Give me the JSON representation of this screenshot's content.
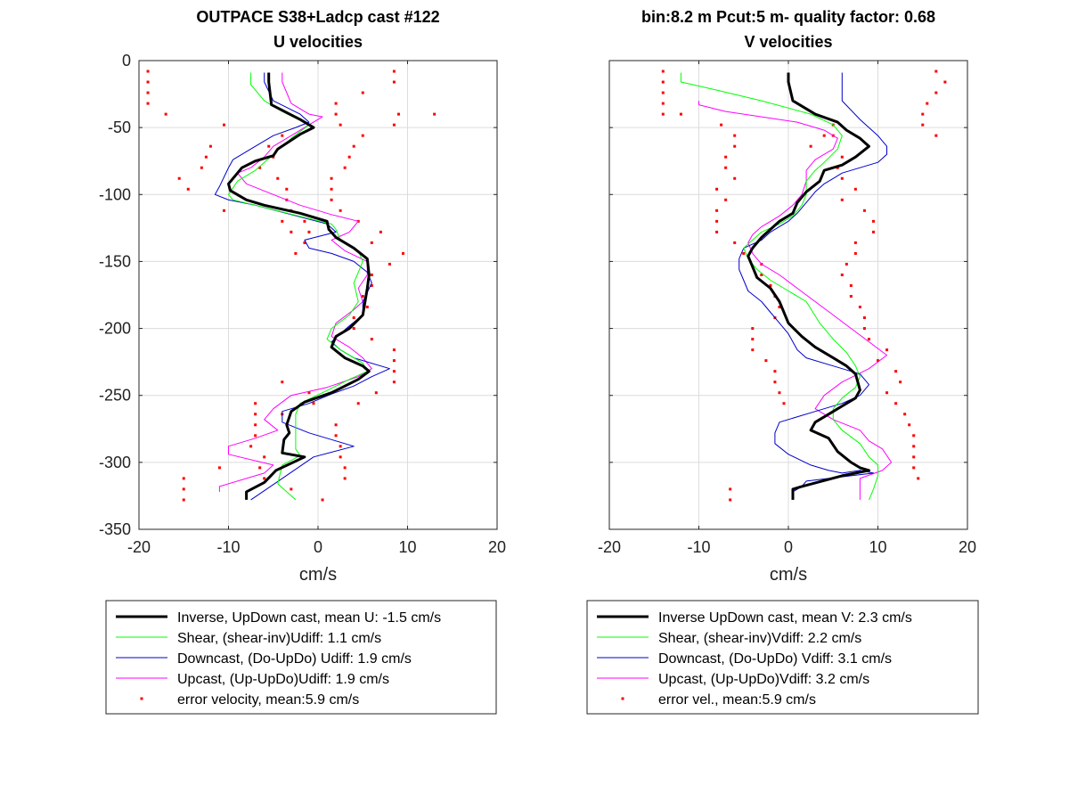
{
  "colors": {
    "inverse": "#000000",
    "shear": "#00ff00",
    "downcast": "#0000cc",
    "upcast": "#ff00ff",
    "error": "#ff0000",
    "grid": "#dcdcdc"
  },
  "chart_data": [
    {
      "type": "line",
      "title": "OUTPACE S38+Ladcp cast #122",
      "subtitle": "U velocities",
      "xlabel": "cm/s",
      "ylabel": "",
      "xlim": [
        -20,
        20
      ],
      "ylim": [
        -350,
        0
      ],
      "xticks": [
        "-20",
        "-10",
        "0",
        "10",
        "20"
      ],
      "yticks": [
        "0",
        "-50",
        "-100",
        "-150",
        "-200",
        "-250",
        "-300",
        "-350"
      ],
      "grid": true,
      "legend_position": "below",
      "series": [
        {
          "key": "inverse",
          "name": "Inverse, UpDown cast, mean U:  -1.5 cm/s",
          "x": [
            -5.5,
            -5.5,
            -5.2,
            -2,
            -0.5,
            -2,
            -4.5,
            -5,
            -7,
            -8.5,
            -10,
            -9.8,
            -8,
            -6,
            -2,
            1,
            1.2,
            2,
            4,
            5.5,
            5.7,
            5.5,
            5,
            3.5,
            2,
            1.5,
            3,
            5,
            5.7,
            4.5,
            1.5,
            -1.5,
            -3,
            -3.5,
            -3.2,
            -3.8,
            -4,
            -1.5,
            -4.7,
            -6,
            -8,
            -8
          ],
          "y": [
            -9,
            -16,
            -33,
            -44,
            -50,
            -55,
            -66,
            -71,
            -75,
            -80,
            -92,
            -97,
            -104,
            -108,
            -114,
            -120,
            -126,
            -132,
            -140,
            -148,
            -160,
            -170,
            -190,
            -200,
            -206,
            -214,
            -222,
            -228,
            -232,
            -238,
            -248,
            -255,
            -262,
            -272,
            -278,
            -283,
            -293,
            -296,
            -306,
            -315,
            -322,
            -328
          ],
          "width": 3
        },
        {
          "key": "shear",
          "name": "Shear, (shear-inv)Udiff:  1.1 cm/s",
          "x": [
            -7.5,
            -7.5,
            -6,
            -4,
            -1,
            -3,
            -5,
            -7,
            -9,
            -10,
            -9.5,
            -7,
            -4,
            -1,
            1.5,
            2,
            2.5,
            4.5,
            5,
            4,
            4.5,
            3.5,
            1.5,
            1,
            2.5,
            5,
            5.5,
            3.5,
            0.5,
            -2,
            -2.5,
            -2.5,
            -2.5,
            -2,
            -4,
            -4.5,
            -2.5
          ],
          "y": [
            -9,
            -18,
            -30,
            -38,
            -48,
            -58,
            -70,
            -82,
            -90,
            -100,
            -104,
            -108,
            -113,
            -118,
            -122,
            -126,
            -134,
            -142,
            -150,
            -166,
            -180,
            -190,
            -200,
            -208,
            -216,
            -226,
            -232,
            -238,
            -248,
            -256,
            -264,
            -280,
            -290,
            -295,
            -302,
            -316,
            -328
          ],
          "width": 1
        },
        {
          "key": "downcast",
          "name": "Downcast, (Do-UpDo) Udiff:  1.9 cm/s",
          "x": [
            -6,
            -6,
            -5,
            -2,
            -1,
            -2.5,
            -5,
            -7.5,
            -9.5,
            -10,
            -11,
            -11.5,
            -10,
            -7,
            -3,
            1,
            2,
            -1.5,
            -1,
            1.5,
            4,
            5.5,
            6,
            5,
            5,
            3.5,
            1.5,
            2.5,
            4,
            8,
            6,
            4,
            1.5,
            -1,
            -4,
            -4,
            -1,
            2,
            4,
            -0.5,
            -4,
            -7.5
          ],
          "y": [
            -9,
            -16,
            -30,
            -40,
            -46,
            -50,
            -56,
            -66,
            -74,
            -80,
            -94,
            -100,
            -104,
            -108,
            -115,
            -122,
            -128,
            -134,
            -140,
            -144,
            -150,
            -158,
            -166,
            -180,
            -190,
            -198,
            -210,
            -216,
            -222,
            -230,
            -236,
            -243,
            -249,
            -256,
            -262,
            -270,
            -278,
            -284,
            -288,
            -296,
            -312,
            -328
          ],
          "width": 1
        },
        {
          "key": "upcast",
          "name": "Upcast, (Up-UpDo)Udiff:  1.9 cm/s",
          "x": [
            -4,
            -4,
            -3,
            -1,
            0.5,
            -1,
            -3,
            -5,
            -6,
            -7.5,
            -9,
            -8,
            -5,
            -2,
            1.5,
            4.5,
            3.5,
            1.5,
            3,
            5.5,
            5.5,
            4.5,
            5,
            4,
            2,
            1.5,
            3.5,
            5,
            6,
            4.5,
            1,
            -3,
            -5,
            -6,
            -4.5,
            -7,
            -10,
            -10,
            -5,
            -6,
            -11,
            -11
          ],
          "y": [
            -9,
            -16,
            -32,
            -40,
            -42,
            -48,
            -56,
            -64,
            -72,
            -80,
            -84,
            -92,
            -100,
            -108,
            -115,
            -120,
            -128,
            -134,
            -142,
            -150,
            -160,
            -170,
            -180,
            -186,
            -196,
            -206,
            -214,
            -222,
            -230,
            -236,
            -244,
            -250,
            -260,
            -268,
            -276,
            -282,
            -288,
            -294,
            -302,
            -308,
            -318,
            -322
          ],
          "width": 1
        }
      ],
      "error_points": {
        "name": "error velocity, mean:5.9 cm/s",
        "x": [
          -19,
          -19,
          -19,
          -19,
          -17,
          -10.5,
          -12,
          -12.5,
          -13,
          -15.5,
          -14.5,
          -10.5,
          -4,
          -5.5,
          -5,
          -6.5,
          -4.5,
          -3.5,
          -3.5,
          -3,
          -1.5,
          -1,
          -1.5,
          -2.5,
          -3,
          -4,
          -15,
          -15,
          -15,
          -11,
          -7,
          -7,
          -7,
          -7,
          -7.5,
          -6,
          -6.5,
          -6,
          -4,
          -1,
          -0.5,
          -4,
          -3,
          0.5,
          3,
          3,
          2.5,
          2.5,
          2,
          2,
          4.5,
          6.5,
          8.5,
          8.5,
          8.5,
          8.5,
          6,
          4,
          4,
          5.5,
          5,
          6,
          6,
          8,
          9.5,
          6,
          7,
          4.5,
          2.5,
          1.5,
          1.5,
          1.5,
          3,
          3.5,
          4,
          5,
          2.5,
          2,
          2,
          5,
          8.5,
          8.5,
          8.5,
          9,
          13
        ],
        "y": [
          -8,
          -16,
          -24,
          -32,
          -40,
          -48,
          -64,
          -72,
          -80,
          -88,
          -96,
          -112,
          -56,
          -64,
          -72,
          -80,
          -88,
          -96,
          -104,
          -112,
          -120,
          -128,
          -136,
          -144,
          -128,
          -120,
          -312,
          -320,
          -328,
          -304,
          -256,
          -264,
          -272,
          -280,
          -288,
          -296,
          -304,
          -312,
          -240,
          -248,
          -256,
          -264,
          -320,
          -328,
          -312,
          -304,
          -296,
          -288,
          -280,
          -272,
          -256,
          -248,
          -240,
          -232,
          -224,
          -216,
          -208,
          -200,
          -192,
          -184,
          -176,
          -168,
          -160,
          -152,
          -144,
          -136,
          -128,
          -120,
          -112,
          -104,
          -96,
          -88,
          -80,
          -72,
          -64,
          -56,
          -48,
          -40,
          -32,
          -24,
          -16,
          -8,
          -48,
          -40,
          -40
        ],
        "color": "#ff0000"
      }
    },
    {
      "type": "line",
      "title": "bin:8.2 m  Pcut:5 m- quality factor:  0.68",
      "subtitle": "V velocities",
      "xlabel": "cm/s",
      "ylabel": "",
      "xlim": [
        -20,
        20
      ],
      "ylim": [
        -350,
        0
      ],
      "xticks": [
        "-20",
        "-10",
        "0",
        "10",
        "20"
      ],
      "yticks": [],
      "grid": true,
      "legend_position": "below",
      "series": [
        {
          "key": "inverse",
          "name": "Inverse UpDown cast, mean V:  2.3 cm/s",
          "x": [
            0,
            0,
            0.5,
            3,
            5.5,
            6.5,
            8,
            9,
            7.5,
            6,
            4,
            3.5,
            2,
            1,
            0.5,
            -1,
            -2,
            -3,
            -4,
            -4.5,
            -4,
            -3.5,
            -2,
            -1,
            0,
            1.5,
            3,
            5,
            6.5,
            7.5,
            8,
            7.5,
            6,
            4.5,
            3,
            2.5,
            4.5,
            5.5,
            7,
            8,
            9,
            6,
            1.5,
            0.5,
            0.5
          ],
          "y": [
            -9,
            -16,
            -30,
            -40,
            -46,
            -52,
            -58,
            -64,
            -72,
            -78,
            -82,
            -90,
            -98,
            -106,
            -114,
            -120,
            -126,
            -132,
            -140,
            -146,
            -154,
            -162,
            -170,
            -180,
            -196,
            -206,
            -214,
            -222,
            -228,
            -234,
            -246,
            -252,
            -258,
            -264,
            -270,
            -276,
            -282,
            -292,
            -300,
            -304,
            -306,
            -310,
            -318,
            -320,
            -328
          ],
          "width": 3
        },
        {
          "key": "shear",
          "name": "Shear, (shear-inv)Vdiff:  2.2 cm/s",
          "x": [
            -12,
            -12,
            -8,
            -3,
            2.5,
            5,
            6,
            5.5,
            4,
            3,
            2,
            2,
            1.5,
            0.5,
            -1,
            -3,
            -4,
            -5,
            -4.5,
            -3.5,
            -2,
            0,
            2,
            3.5,
            5,
            6.5,
            7.5,
            8,
            7.5,
            6,
            5,
            5,
            6,
            8,
            9,
            10,
            10,
            9.5,
            9
          ],
          "y": [
            -9,
            -16,
            -22,
            -30,
            -40,
            -48,
            -56,
            -66,
            -76,
            -82,
            -90,
            -100,
            -108,
            -116,
            -122,
            -128,
            -134,
            -140,
            -148,
            -156,
            -164,
            -172,
            -180,
            -196,
            -208,
            -218,
            -228,
            -236,
            -244,
            -252,
            -260,
            -268,
            -276,
            -286,
            -296,
            -302,
            -310,
            -320,
            -328
          ],
          "width": 1
        },
        {
          "key": "downcast",
          "name": "Downcast, (Do-UpDo) Vdiff:  3.1 cm/s",
          "x": [
            6,
            6,
            6,
            8,
            10,
            11,
            11,
            10,
            8,
            6,
            5,
            4,
            3,
            2,
            1,
            0,
            -2,
            -3,
            -5,
            -5.5,
            -5.5,
            -5,
            -4.5,
            -3,
            -2,
            -1,
            0,
            0.5,
            1,
            2,
            5,
            8,
            9,
            8,
            6,
            3,
            -1,
            -1.5,
            -1.5,
            0,
            2.5,
            4.5,
            6,
            8,
            9.5,
            2,
            1.5,
            0.5,
            0.5
          ],
          "y": [
            -9,
            -16,
            -30,
            -44,
            -56,
            -64,
            -70,
            -76,
            -80,
            -84,
            -88,
            -92,
            -98,
            -106,
            -114,
            -120,
            -128,
            -134,
            -140,
            -148,
            -156,
            -164,
            -172,
            -180,
            -188,
            -196,
            -204,
            -210,
            -216,
            -222,
            -228,
            -234,
            -242,
            -250,
            -256,
            -262,
            -270,
            -278,
            -286,
            -294,
            -302,
            -306,
            -308,
            -306,
            -308,
            -314,
            -318,
            -322,
            -328
          ],
          "width": 1
        },
        {
          "key": "upcast",
          "name": "Upcast, (Up-UpDo)Vdiff:  3.2 cm/s",
          "x": [
            -10,
            -10,
            -7,
            -3,
            1,
            4,
            5.5,
            5,
            3,
            2,
            2,
            1.5,
            0.5,
            -1,
            -3,
            -4,
            -4.5,
            -4,
            -3,
            -1,
            1,
            3,
            5,
            7,
            9,
            11,
            9,
            6,
            4,
            3,
            5,
            8,
            9,
            10.5,
            11.5,
            10.5,
            8,
            8,
            8
          ],
          "y": [
            -30,
            -33,
            -38,
            -42,
            -46,
            -52,
            -58,
            -66,
            -74,
            -82,
            -90,
            -100,
            -108,
            -116,
            -124,
            -130,
            -136,
            -144,
            -152,
            -160,
            -170,
            -180,
            -190,
            -200,
            -210,
            -220,
            -230,
            -240,
            -250,
            -260,
            -268,
            -276,
            -284,
            -290,
            -300,
            -306,
            -312,
            -320,
            -328
          ],
          "width": 1
        }
      ],
      "error_points": {
        "name": "error vel., mean:5.9 cm/s",
        "x": [
          -14,
          -14,
          -14,
          -14,
          -14,
          -12,
          -7.5,
          -6,
          -6,
          -7,
          -7,
          -6,
          -8,
          -7,
          -8,
          -8,
          -8,
          -6,
          -5,
          -3,
          -3,
          -2,
          -1.5,
          -1,
          -1.5,
          -4,
          -4,
          -4,
          -2.5,
          -1.5,
          -1.5,
          -1,
          -0.5,
          -6.5,
          -6.5,
          2.5,
          4,
          5,
          5,
          6,
          5.5,
          6,
          7.5,
          6,
          8.5,
          9.5,
          9.5,
          7.5,
          7.5,
          6.5,
          6,
          7,
          7,
          8,
          8.5,
          8.5,
          9,
          11,
          10,
          12,
          12.5,
          11,
          12,
          13,
          13.5,
          14,
          14,
          14,
          14,
          14.5,
          16.5,
          17.5,
          16.5,
          15.5,
          15,
          15,
          16.5
        ],
        "y": [
          -8,
          -16,
          -24,
          -32,
          -40,
          -40,
          -48,
          -56,
          -64,
          -72,
          -80,
          -88,
          -96,
          -104,
          -112,
          -120,
          -128,
          -136,
          -144,
          -152,
          -160,
          -168,
          -176,
          -184,
          -192,
          -200,
          -208,
          -216,
          -224,
          -232,
          -240,
          -248,
          -256,
          -320,
          -328,
          -64,
          -56,
          -48,
          -56,
          -72,
          -80,
          -88,
          -96,
          -104,
          -112,
          -120,
          -128,
          -136,
          -144,
          -152,
          -160,
          -168,
          -176,
          -184,
          -192,
          -200,
          -208,
          -216,
          -224,
          -232,
          -240,
          -248,
          -256,
          -264,
          -272,
          -280,
          -288,
          -296,
          -304,
          -312,
          -8,
          -16,
          -24,
          -32,
          -40,
          -48,
          -56
        ],
        "color": "#ff0000"
      }
    }
  ]
}
